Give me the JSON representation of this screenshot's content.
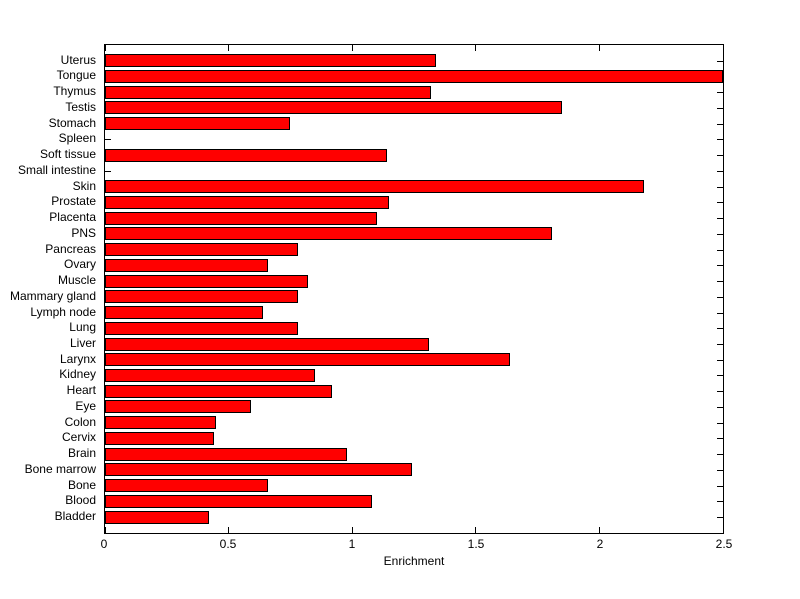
{
  "chart_data": {
    "type": "bar",
    "orientation": "horizontal",
    "title": "",
    "xlabel": "Enrichment",
    "ylabel": "",
    "xlim": [
      0,
      2.5
    ],
    "x_ticks": [
      0,
      0.5,
      1,
      1.5,
      2,
      2.5
    ],
    "x_tick_labels": [
      "0",
      "0.5",
      "1",
      "1.5",
      "2",
      "2.5"
    ],
    "grid": false,
    "legend": null,
    "bar_color": "#ff0000",
    "bar_edge_color": "#000000",
    "background_color": "#ffffff",
    "categories": [
      "Uterus",
      "Tongue",
      "Thymus",
      "Testis",
      "Stomach",
      "Spleen",
      "Soft tissue",
      "Small intestine",
      "Skin",
      "Prostate",
      "Placenta",
      "PNS",
      "Pancreas",
      "Ovary",
      "Muscle",
      "Mammary gland",
      "Lymph node",
      "Lung",
      "Liver",
      "Larynx",
      "Kidney",
      "Heart",
      "Eye",
      "Colon",
      "Cervix",
      "Brain",
      "Bone marrow",
      "Bone",
      "Blood",
      "Bladder"
    ],
    "values": [
      1.34,
      2.5,
      1.32,
      1.85,
      0.75,
      0,
      1.14,
      0,
      2.18,
      1.15,
      1.1,
      1.81,
      0.78,
      0.66,
      0.82,
      0.78,
      0.64,
      0.78,
      1.31,
      1.64,
      0.85,
      0.92,
      0.59,
      0.45,
      0.44,
      0.98,
      1.24,
      0.66,
      1.08,
      0.42
    ]
  }
}
